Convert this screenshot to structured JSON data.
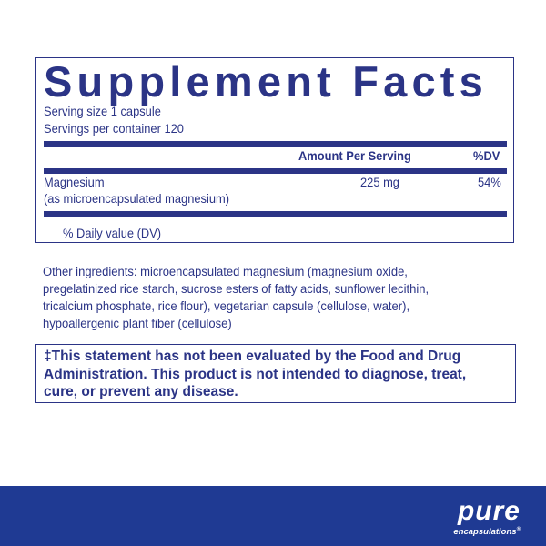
{
  "facts": {
    "title": "Supplement Facts",
    "serving_size": "Serving size  1 capsule",
    "servings_per_container": "Servings per container  120",
    "col_amount": "Amount Per Serving",
    "col_dv": "%DV",
    "rows": [
      {
        "name": "Magnesium",
        "sub": "(as microencapsulated magnesium)",
        "amount": "225 mg",
        "dv": "54%"
      }
    ],
    "footnote": "% Daily value (DV)"
  },
  "other_ingredients": [
    "Other ingredients: microencapsulated magnesium (magnesium oxide,",
    "pregelatinized rice starch, sucrose esters of fatty acids, sunflower lecithin,",
    "tricalcium phosphate, rice flour), vegetarian capsule (cellulose, water),",
    "hypoallergenic plant fiber (cellulose)"
  ],
  "disclaimer": [
    "‡This statement has not been evaluated by the Food and Drug",
    "Administration. This product is not intended to diagnose, treat,",
    "cure, or prevent any disease."
  ],
  "brand": {
    "name": "pure",
    "sub": "encapsulations",
    "mark": "®",
    "color": "#1f3a93"
  }
}
